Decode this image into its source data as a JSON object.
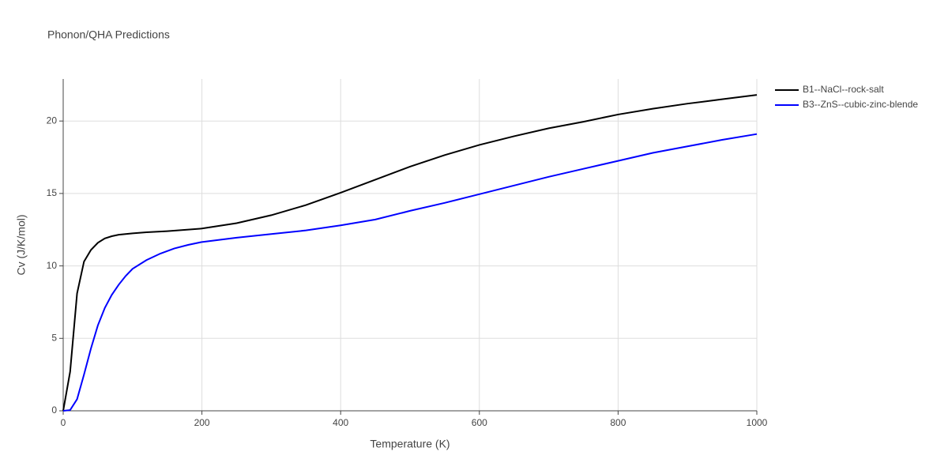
{
  "chart_data": {
    "type": "line",
    "title": "Phonon/QHA Predictions",
    "x_label": "Temperature (K)",
    "y_label": "Cv (J/K/mol)",
    "xlim": [
      0,
      1000
    ],
    "xticks": [
      0,
      200,
      400,
      600,
      800,
      1000
    ],
    "ylim": [
      0,
      22.9
    ],
    "yticks": [
      0,
      5,
      10,
      15,
      20
    ],
    "grid": true,
    "series": [
      {
        "name": "B1--NaCl--rock-salt",
        "color": "#000000",
        "x": [
          0,
          10,
          20,
          30,
          40,
          50,
          60,
          70,
          80,
          100,
          120,
          150,
          200,
          250,
          300,
          350,
          400,
          450,
          500,
          550,
          600,
          650,
          700,
          750,
          800,
          850,
          900,
          950,
          1000
        ],
        "values": [
          0,
          2.7,
          8.1,
          10.3,
          11.1,
          11.6,
          11.9,
          12.05,
          12.15,
          12.25,
          12.32,
          12.4,
          12.58,
          12.95,
          13.5,
          14.2,
          15.05,
          15.95,
          16.85,
          17.65,
          18.35,
          18.95,
          19.5,
          19.95,
          20.45,
          20.85,
          21.2,
          21.5,
          21.8
        ]
      },
      {
        "name": "B3--ZnS--cubic-zinc-blende",
        "color": "#0000ff",
        "x": [
          0,
          10,
          20,
          30,
          40,
          50,
          60,
          70,
          80,
          90,
          100,
          120,
          140,
          160,
          180,
          200,
          250,
          300,
          350,
          400,
          450,
          500,
          550,
          600,
          650,
          700,
          750,
          800,
          850,
          900,
          950,
          1000
        ],
        "values": [
          0,
          0.05,
          0.8,
          2.5,
          4.3,
          5.9,
          7.1,
          8.0,
          8.7,
          9.3,
          9.8,
          10.4,
          10.85,
          11.2,
          11.45,
          11.65,
          11.95,
          12.2,
          12.45,
          12.8,
          13.2,
          13.8,
          14.35,
          14.95,
          15.55,
          16.15,
          16.7,
          17.25,
          17.8,
          18.25,
          18.7,
          19.1
        ]
      }
    ]
  }
}
